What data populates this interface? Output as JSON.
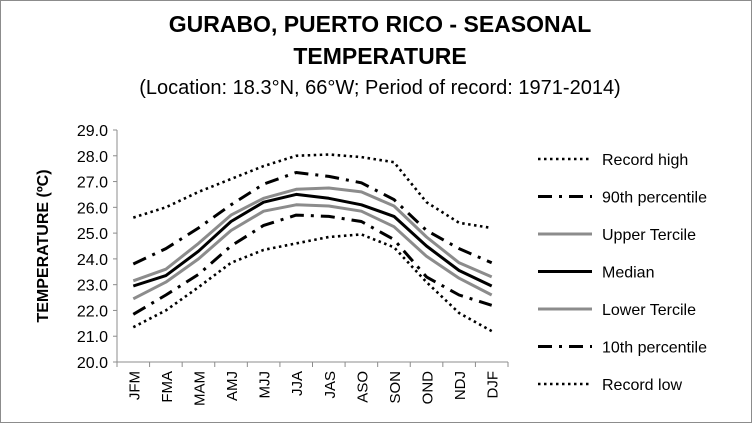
{
  "chart_data": {
    "type": "line",
    "title_line1": "GURABO, PUERTO RICO - SEASONAL",
    "title_line2": "TEMPERATURE",
    "subtitle": "(Location: 18.3°N, 66°W; Period of record: 1971-2014)",
    "ylabel": "TEMPERATURE (ºC)",
    "xlabel": "",
    "ylim": [
      20.0,
      29.0
    ],
    "y_ticks": [
      "29.0",
      "28.0",
      "27.0",
      "26.0",
      "25.0",
      "24.0",
      "23.0",
      "22.0",
      "21.0",
      "20.0"
    ],
    "grid": false,
    "legend_position": "right",
    "categories": [
      "JFM",
      "FMA",
      "MAM",
      "AMJ",
      "MJJ",
      "JJA",
      "JAS",
      "ASO",
      "SON",
      "OND",
      "NDJ",
      "DJF"
    ],
    "series": [
      {
        "name": "Record high",
        "style": "dotted",
        "color": "#000000",
        "values": [
          25.6,
          26.0,
          26.6,
          27.1,
          27.6,
          28.0,
          28.05,
          27.95,
          27.75,
          26.2,
          25.4,
          25.2
        ]
      },
      {
        "name": "90th percentile",
        "style": "dashdot",
        "color": "#000000",
        "values": [
          23.8,
          24.4,
          25.2,
          26.1,
          26.9,
          27.35,
          27.2,
          26.95,
          26.3,
          25.1,
          24.4,
          23.85
        ]
      },
      {
        "name": "Upper Tercile",
        "style": "solid-gray",
        "color": "#8c8c8c",
        "values": [
          23.15,
          23.6,
          24.6,
          25.7,
          26.35,
          26.7,
          26.75,
          26.6,
          26.05,
          24.85,
          23.85,
          23.3
        ]
      },
      {
        "name": "Median",
        "style": "solid-black",
        "color": "#000000",
        "values": [
          22.95,
          23.35,
          24.3,
          25.45,
          26.2,
          26.5,
          26.35,
          26.1,
          25.65,
          24.5,
          23.55,
          22.95
        ]
      },
      {
        "name": "Lower Tercile",
        "style": "solid-gray",
        "color": "#8c8c8c",
        "values": [
          22.45,
          23.1,
          24.0,
          25.1,
          25.85,
          26.1,
          26.05,
          25.85,
          25.25,
          24.1,
          23.25,
          22.6
        ]
      },
      {
        "name": "10th percentile",
        "style": "dashdot",
        "color": "#000000",
        "values": [
          21.85,
          22.6,
          23.4,
          24.5,
          25.3,
          25.7,
          25.65,
          25.45,
          24.75,
          23.3,
          22.6,
          22.2
        ]
      },
      {
        "name": "Record low",
        "style": "dotted",
        "color": "#000000",
        "values": [
          21.35,
          22.0,
          22.9,
          23.85,
          24.35,
          24.6,
          24.85,
          24.95,
          24.45,
          23.1,
          21.9,
          21.2
        ]
      }
    ]
  }
}
